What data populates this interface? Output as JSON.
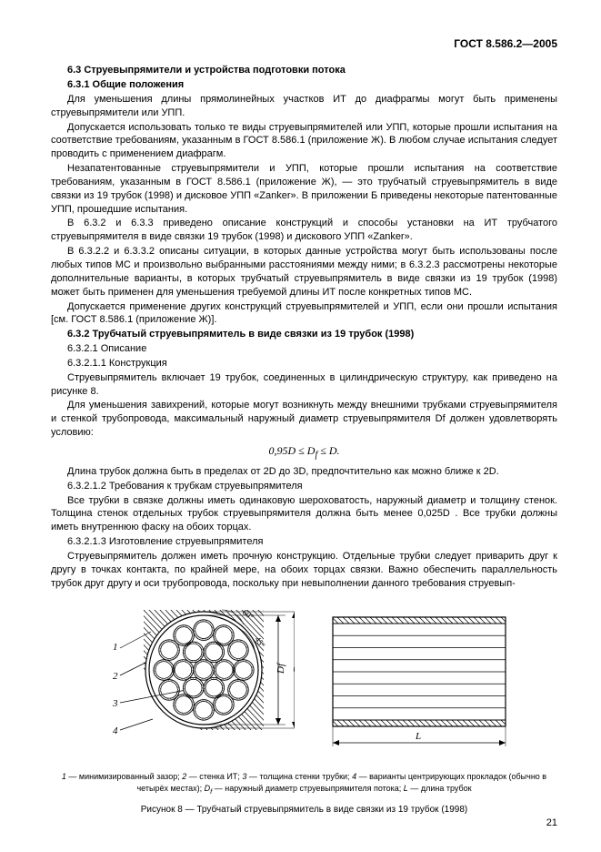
{
  "doc_header": "ГОСТ 8.586.2—2005",
  "h63": "6.3  Струевыпрямители и устройства подготовки потока",
  "h631": "6.3.1  Общие положения",
  "p1": "Для уменьшения длины прямолинейных участков ИТ до диафрагмы могут быть применены струевыпрямители или УПП.",
  "p2": "Допускается использовать только те виды струевыпрямителей или УПП, которые прошли испытания на соответствие требованиям, указанным в ГОСТ 8.586.1 (приложение Ж). В любом случае испытания следует проводить с применением диафрагм.",
  "p3": "Незапатентованные струевыпрямители и УПП, которые прошли испытания на соответствие требованиям, указанным в ГОСТ 8.586.1 (приложение Ж), — это трубчатый струевыпрямитель в виде связки из 19 трубок (1998) и дисковое УПП «Zanker». В приложении Б приведены некоторые патентованные УПП, прошедшие испытания.",
  "p4": "В 6.3.2 и 6.3.3 приведено описание конструкций и способы установки на ИТ трубчатого струевыпрямителя в виде связки 19 трубок (1998) и дискового УПП «Zanker».",
  "p5": "В 6.3.2.2 и 6.3.3.2 описаны ситуации, в которых данные устройства могут быть использованы после любых типов МС и произвольно выбранными расстояниями между ними; в 6.3.2.3 рассмотрены некоторые дополнительные варианты, в которых трубчатый струевыпрямитель в виде связки из 19 трубок (1998) может быть применен для уменьшения требуемой длины ИТ после конкретных типов МС.",
  "p6": "Допускается применение других конструкций струевыпрямителей и УПП, если они прошли испытания [см. ГОСТ 8.586.1 (приложение Ж)].",
  "h632": "6.3.2  Трубчатый струевыпрямитель в виде связки из 19 трубок (1998)",
  "l6321": "6.3.2.1  Описание",
  "l63211": "6.3.2.1.1  Конструкция",
  "p7": "Струевыпрямитель включает 19 трубок, соединенных в цилиндрическую структуру, как приведено на рисунке 8.",
  "p8": "Для уменьшения завихрений, которые могут возникнуть между внешними трубками струевыпрямителя и стенкой трубопровода, максимальный наружный диаметр струевыпрямителя Df должен удовлетворять условию:",
  "formula": "0,95D ≤ Df ≤ D.",
  "p9": "Длина трубок должна быть в пределах от 2D до 3D, предпочтительно как можно ближе к 2D.",
  "l63212": "6.3.2.1.2  Требования к трубкам струевыпрямителя",
  "p10": "Все трубки в связке должны иметь одинаковую шероховатость, наружный диаметр и толщину стенок. Толщина стенок отдельных трубок струевыпрямителя должна быть менее 0,025D . Все трубки должны иметь внутреннюю фаску на обоих торцах.",
  "l63213": "6.3.2.1.3  Изготовление струевыпрямителя",
  "p11": "Струевыпрямитель должен иметь прочную конструкцию. Отдельные трубки следует приварить друг к другу в точках контакта, по крайней мере, на обоих торцах связки. Важно обеспечить параллельность трубок друг другу и оси трубопровода, поскольку при невыполнении данного требования струевып-",
  "figure": {
    "legend": "1 — минимизированный зазор; 2 — стенка ИТ; 3 — толщина стенки трубки; 4 — варианты центрирующих прокладок (обычно в четырёх местах); Df — наружный диаметр струевыпрямителя потока; L — длина трубок",
    "title": "Рисунок 8 — Трубчатый струевыпрямитель в виде связки из 19 трубок (1998)",
    "labels": {
      "n1": "1",
      "n2": "2",
      "n3": "3",
      "n4": "4",
      "Df": "Df",
      "L": "L",
      "D": "D"
    },
    "colors": {
      "stroke": "#000000",
      "hatch": "#000000",
      "bg": "#ffffff"
    },
    "cross": {
      "outerR": 60,
      "hatchOuterR": 64,
      "tubeR": 11.3,
      "hatchStep": 6,
      "font": 11
    },
    "side": {
      "w": 190,
      "h": 120,
      "hatchStep": 6
    }
  },
  "page_number": "21"
}
